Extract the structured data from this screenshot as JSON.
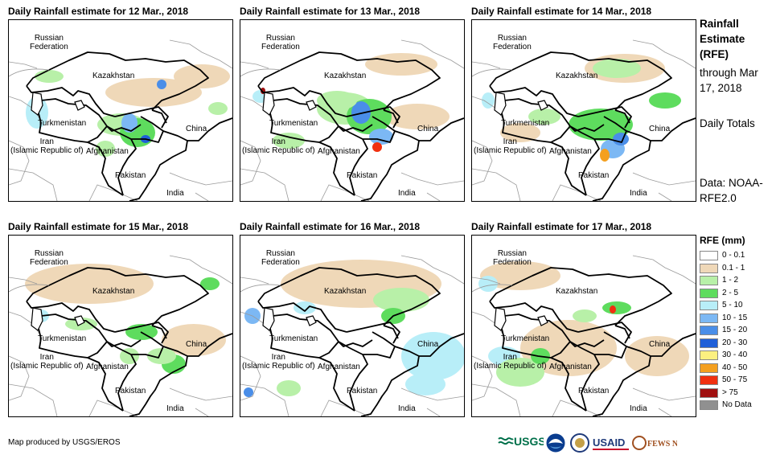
{
  "panels": [
    {
      "title": "Daily Rainfall estimate for 12 Mar., 2018"
    },
    {
      "title": "Daily Rainfall estimate for 13 Mar., 2018"
    },
    {
      "title": "Daily Rainfall estimate for 14 Mar., 2018"
    },
    {
      "title": "Daily Rainfall estimate for 15 Mar., 2018"
    },
    {
      "title": "Daily Rainfall estimate for 16 Mar., 2018"
    },
    {
      "title": "Daily Rainfall estimate for 17 Mar., 2018"
    }
  ],
  "map_labels": {
    "russia": "Russian Federation",
    "kazakhstan": "Kazakhstan",
    "turkmenistan": "Turkmenistan",
    "iran": "Iran (Islamic Republic of)",
    "afghanistan": "Afghanistan",
    "pakistan": "Pakistan",
    "china": "China",
    "india": "India"
  },
  "sidebar": {
    "title": "Rainfall Estimate (RFE)",
    "through": "through Mar 17, 2018",
    "totals": "Daily Totals",
    "data": "Data: NOAA-RFE2.0"
  },
  "legend": {
    "title": "RFE (mm)",
    "items": [
      {
        "label": "0 - 0.1",
        "color": "#ffffff"
      },
      {
        "label": "0.1 - 1",
        "color": "#efd8b8"
      },
      {
        "label": "1 - 2",
        "color": "#b8f0a8"
      },
      {
        "label": "2 - 5",
        "color": "#5edc5e"
      },
      {
        "label": "5 - 10",
        "color": "#b8eef8"
      },
      {
        "label": "10 - 15",
        "color": "#7cb8f4"
      },
      {
        "label": "15 - 20",
        "color": "#4a8ee8"
      },
      {
        "label": "20 - 30",
        "color": "#1f5fd8"
      },
      {
        "label": "30 - 40",
        "color": "#fcf080"
      },
      {
        "label": "40 - 50",
        "color": "#f4a020"
      },
      {
        "label": "50 - 75",
        "color": "#f03010"
      },
      {
        "label": "> 75",
        "color": "#a01010"
      },
      {
        "label": "No Data",
        "color": "#909090"
      }
    ]
  },
  "footer": {
    "credit": "Map produced by USGS/EROS",
    "logos": [
      {
        "name": "usgs",
        "text": "USGS"
      },
      {
        "name": "noaa",
        "text": "NOAA"
      },
      {
        "name": "usaid",
        "text": "USAID"
      },
      {
        "name": "fewsnet",
        "text": "FEWS NET"
      }
    ]
  }
}
